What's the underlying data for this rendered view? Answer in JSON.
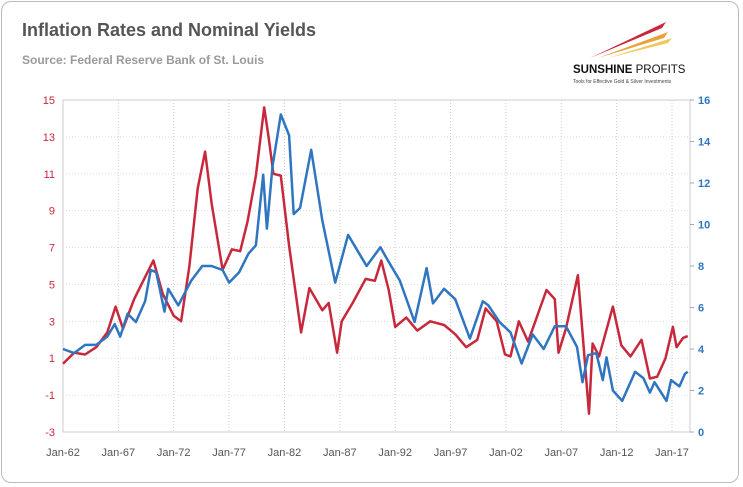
{
  "chart_data": {
    "type": "line",
    "title": "Inflation Rates and Nominal Yields",
    "subtitle": "Source: Federal Reserve Bank of St. Louis",
    "x_tick_labels": [
      "Jan-62",
      "Jan-67",
      "Jan-72",
      "Jan-77",
      "Jan-82",
      "Jan-87",
      "Jan-92",
      "Jan-97",
      "Jan-02",
      "Jan-07",
      "Jan-12",
      "Jan-17"
    ],
    "left_axis": {
      "ylim": [
        -3,
        15
      ],
      "ticks": [
        "15",
        "13",
        "11",
        "9",
        "7",
        "5",
        "3",
        "1",
        "-1",
        "-3"
      ],
      "color": "#c8283c"
    },
    "right_axis": {
      "ylim": [
        0,
        16
      ],
      "ticks": [
        "16",
        "14",
        "12",
        "10",
        "8",
        "6",
        "4",
        "2",
        "0"
      ],
      "color": "#2f75c0"
    },
    "xlim": [
      "1962-01",
      "2018-06"
    ],
    "grid": true,
    "series": [
      {
        "axis": "left",
        "color": "#c8283c",
        "points": [
          [
            "1962-01",
            0.7
          ],
          [
            "1963-01",
            1.3
          ],
          [
            "1964-01",
            1.2
          ],
          [
            "1965-01",
            1.6
          ],
          [
            "1966-01",
            2.4
          ],
          [
            "1966-10",
            3.8
          ],
          [
            "1967-06",
            2.6
          ],
          [
            "1968-06",
            4.2
          ],
          [
            "1969-06",
            5.4
          ],
          [
            "1970-03",
            6.3
          ],
          [
            "1971-01",
            4.5
          ],
          [
            "1972-01",
            3.3
          ],
          [
            "1972-09",
            3.0
          ],
          [
            "1973-06",
            6.0
          ],
          [
            "1974-03",
            10.2
          ],
          [
            "1974-11",
            12.2
          ],
          [
            "1975-06",
            9.4
          ],
          [
            "1976-06",
            5.8
          ],
          [
            "1977-04",
            6.9
          ],
          [
            "1978-01",
            6.8
          ],
          [
            "1978-09",
            8.4
          ],
          [
            "1979-06",
            10.9
          ],
          [
            "1980-03",
            14.6
          ],
          [
            "1980-08",
            12.9
          ],
          [
            "1981-01",
            11.0
          ],
          [
            "1981-09",
            10.9
          ],
          [
            "1982-06",
            7.1
          ],
          [
            "1983-04",
            3.5
          ],
          [
            "1983-07",
            2.4
          ],
          [
            "1984-04",
            4.8
          ],
          [
            "1985-06",
            3.6
          ],
          [
            "1986-01",
            4.0
          ],
          [
            "1986-10",
            1.3
          ],
          [
            "1987-03",
            3.0
          ],
          [
            "1988-03",
            4.0
          ],
          [
            "1989-05",
            5.3
          ],
          [
            "1990-03",
            5.2
          ],
          [
            "1990-10",
            6.3
          ],
          [
            "1991-06",
            4.7
          ],
          [
            "1992-01",
            2.7
          ],
          [
            "1993-01",
            3.2
          ],
          [
            "1994-01",
            2.5
          ],
          [
            "1995-03",
            3.0
          ],
          [
            "1996-06",
            2.8
          ],
          [
            "1997-06",
            2.3
          ],
          [
            "1998-06",
            1.6
          ],
          [
            "1999-06",
            2.0
          ],
          [
            "2000-03",
            3.7
          ],
          [
            "2001-03",
            3.0
          ],
          [
            "2001-12",
            1.2
          ],
          [
            "2002-06",
            1.1
          ],
          [
            "2003-03",
            3.0
          ],
          [
            "2004-01",
            1.9
          ],
          [
            "2005-09",
            4.7
          ],
          [
            "2006-06",
            4.2
          ],
          [
            "2006-10",
            1.3
          ],
          [
            "2007-06",
            2.6
          ],
          [
            "2008-07",
            5.5
          ],
          [
            "2009-07",
            -2.0
          ],
          [
            "2009-11",
            1.8
          ],
          [
            "2010-06",
            1.1
          ],
          [
            "2011-09",
            3.8
          ],
          [
            "2012-06",
            1.7
          ],
          [
            "2013-04",
            1.1
          ],
          [
            "2014-04",
            2.0
          ],
          [
            "2015-01",
            -0.1
          ],
          [
            "2015-09",
            0.0
          ],
          [
            "2016-06",
            1.0
          ],
          [
            "2017-02",
            2.7
          ],
          [
            "2017-06",
            1.6
          ],
          [
            "2018-01",
            2.1
          ],
          [
            "2018-06",
            2.2
          ]
        ]
      },
      {
        "axis": "right",
        "color": "#2f75c0",
        "points": [
          [
            "1962-01",
            4.0
          ],
          [
            "1963-01",
            3.8
          ],
          [
            "1964-01",
            4.2
          ],
          [
            "1965-01",
            4.2
          ],
          [
            "1966-01",
            4.6
          ],
          [
            "1966-09",
            5.2
          ],
          [
            "1967-03",
            4.6
          ],
          [
            "1967-11",
            5.7
          ],
          [
            "1968-08",
            5.3
          ],
          [
            "1969-06",
            6.3
          ],
          [
            "1969-12",
            7.8
          ],
          [
            "1970-06",
            7.7
          ],
          [
            "1971-03",
            5.8
          ],
          [
            "1971-07",
            6.9
          ],
          [
            "1972-06",
            6.1
          ],
          [
            "1973-08",
            7.3
          ],
          [
            "1974-08",
            8.0
          ],
          [
            "1975-06",
            8.0
          ],
          [
            "1976-06",
            7.8
          ],
          [
            "1977-01",
            7.2
          ],
          [
            "1977-12",
            7.7
          ],
          [
            "1978-10",
            8.6
          ],
          [
            "1979-06",
            9.0
          ],
          [
            "1980-02",
            12.4
          ],
          [
            "1980-06",
            9.8
          ],
          [
            "1980-12",
            12.8
          ],
          [
            "1981-09",
            15.3
          ],
          [
            "1982-06",
            14.3
          ],
          [
            "1982-11",
            10.5
          ],
          [
            "1983-06",
            10.8
          ],
          [
            "1984-06",
            13.6
          ],
          [
            "1985-06",
            10.2
          ],
          [
            "1986-08",
            7.2
          ],
          [
            "1987-10",
            9.5
          ],
          [
            "1988-06",
            8.9
          ],
          [
            "1989-06",
            8.0
          ],
          [
            "1990-09",
            8.9
          ],
          [
            "1991-06",
            8.2
          ],
          [
            "1992-06",
            7.3
          ],
          [
            "1993-10",
            5.3
          ],
          [
            "1994-11",
            7.9
          ],
          [
            "1995-06",
            6.2
          ],
          [
            "1996-06",
            6.9
          ],
          [
            "1997-06",
            6.4
          ],
          [
            "1998-10",
            4.5
          ],
          [
            "1999-12",
            6.3
          ],
          [
            "2000-06",
            6.1
          ],
          [
            "2001-06",
            5.3
          ],
          [
            "2002-06",
            4.8
          ],
          [
            "2003-06",
            3.3
          ],
          [
            "2004-06",
            4.7
          ],
          [
            "2005-06",
            4.0
          ],
          [
            "2006-06",
            5.1
          ],
          [
            "2007-06",
            5.1
          ],
          [
            "2008-06",
            4.1
          ],
          [
            "2008-12",
            2.4
          ],
          [
            "2009-06",
            3.7
          ],
          [
            "2010-03",
            3.8
          ],
          [
            "2010-10",
            2.5
          ],
          [
            "2011-02",
            3.6
          ],
          [
            "2011-09",
            2.0
          ],
          [
            "2012-07",
            1.5
          ],
          [
            "2013-09",
            2.9
          ],
          [
            "2014-06",
            2.6
          ],
          [
            "2015-01",
            1.9
          ],
          [
            "2015-06",
            2.4
          ],
          [
            "2016-07",
            1.5
          ],
          [
            "2016-12",
            2.5
          ],
          [
            "2017-09",
            2.2
          ],
          [
            "2018-03",
            2.8
          ],
          [
            "2018-06",
            2.9
          ]
        ]
      }
    ]
  },
  "logo": {
    "name": "SUNSHINE PROFITS",
    "tagline": "Tools for Effective Gold & Silver Investments"
  }
}
